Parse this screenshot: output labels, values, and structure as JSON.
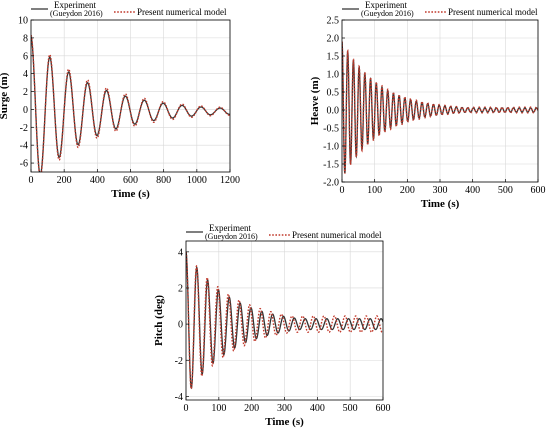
{
  "legend": {
    "experiment_label": "Experiment",
    "experiment_sub": "(Gueydon 2016)",
    "model_label": "Present numerical model"
  },
  "colors": {
    "experiment": "#333333",
    "model": "#c0392b"
  },
  "chart_data": [
    {
      "type": "line",
      "xlabel": "Time (s)",
      "ylabel": "Surge (m)",
      "xlim": [
        0,
        1200
      ],
      "ylim": [
        -7,
        10
      ],
      "xticks": [
        "0",
        "200",
        "400",
        "600",
        "800",
        "1000",
        "1200"
      ],
      "yticks": [
        "-6",
        "-4",
        "-2",
        "0",
        "2",
        "4",
        "6",
        "8",
        "10"
      ],
      "grid": true,
      "legend_position": "top",
      "series": [
        {
          "name": "Experiment (Gueydon 2016)",
          "model": {
            "initial": 8.3,
            "offset": -0.2,
            "period": 114,
            "decay": 0.0028,
            "floor": 0.35
          }
        },
        {
          "name": "Present numerical model",
          "model": {
            "initial": 8.5,
            "offset": -0.2,
            "period": 114,
            "decay": 0.0026,
            "floor": 0.45
          }
        }
      ]
    },
    {
      "type": "line",
      "xlabel": "Time (s)",
      "ylabel": "Heave (m)",
      "xlim": [
        0,
        600
      ],
      "ylim": [
        -2.0,
        2.5
      ],
      "xticks": [
        "0",
        "100",
        "200",
        "300",
        "400",
        "500",
        "600"
      ],
      "yticks": [
        "-2.0",
        "-1.5",
        "-1.0",
        "-0.5",
        "0.0",
        "0.5",
        "1.0",
        "1.5",
        "2.0",
        "2.5"
      ],
      "grid": true,
      "legend_position": "top",
      "series": [
        {
          "name": "Experiment (Gueydon 2016)",
          "model": {
            "initial": 1.9,
            "offset": 0.0,
            "period": 17.5,
            "decay": 0.009,
            "floor": 0.06
          }
        },
        {
          "name": "Present numerical model",
          "model": {
            "initial": 1.9,
            "offset": 0.0,
            "period": 17.5,
            "decay": 0.0085,
            "floor": 0.08
          }
        }
      ]
    },
    {
      "type": "line",
      "xlabel": "Time (s)",
      "ylabel": "Pitch (deg)",
      "xlim": [
        0,
        600
      ],
      "ylim": [
        -4.2,
        4.6
      ],
      "xticks": [
        "0",
        "100",
        "200",
        "300",
        "400",
        "500",
        "600"
      ],
      "yticks": [
        "-4",
        "-2",
        "0",
        "2",
        "4"
      ],
      "grid": true,
      "legend_position": "top",
      "series": [
        {
          "name": "Experiment (Gueydon 2016)",
          "model": {
            "initial": 4.0,
            "offset": 0.0,
            "period": 33,
            "decay": 0.0075,
            "floor": 0.3
          }
        },
        {
          "name": "Present numerical model",
          "model": {
            "initial": 4.0,
            "offset": 0.0,
            "period": 32.3,
            "decay": 0.0068,
            "floor": 0.45
          }
        }
      ]
    }
  ]
}
